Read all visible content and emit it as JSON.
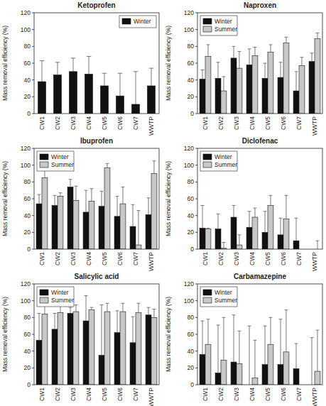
{
  "chart_data": [
    {
      "type": "bar",
      "title": "Ketoprofen",
      "y_label": "Mass removal efficiency (%)",
      "categories": [
        "CW1",
        "CW2",
        "CW3",
        "CW4",
        "CW5",
        "CW6",
        "CW7",
        "WWTP"
      ],
      "ylim": [
        0,
        120
      ],
      "yticks": [
        0,
        20,
        40,
        60,
        80,
        100,
        120
      ],
      "legend": "upper right",
      "series": [
        {
          "name": "Winter",
          "color": "#111111",
          "values": [
            38,
            46,
            50,
            47,
            33,
            21,
            11,
            33
          ],
          "errors": [
            25,
            15,
            16,
            21,
            15,
            27,
            39,
            21
          ]
        }
      ]
    },
    {
      "type": "bar",
      "title": "Naproxen",
      "y_label": "Mass removal efficiency (%)",
      "categories": [
        "CW1",
        "CW2",
        "CW3",
        "CW4",
        "CW5",
        "CW6",
        "CW7",
        "WWTP"
      ],
      "ylim": [
        0,
        120
      ],
      "yticks": [
        0,
        20,
        40,
        60,
        80,
        100,
        120
      ],
      "legend": "upper left",
      "series": [
        {
          "name": "Winter",
          "color": "#111111",
          "values": [
            41,
            42,
            66,
            58,
            42,
            43,
            27,
            62
          ],
          "errors": [
            11,
            19,
            14,
            19,
            18,
            18,
            23,
            10
          ]
        },
        {
          "name": "Summer",
          "color": "#c8c8c8",
          "values": [
            68,
            27,
            54,
            69,
            73,
            84,
            57,
            89
          ],
          "errors": [
            14,
            17,
            20,
            10,
            9,
            7,
            10,
            7
          ]
        }
      ]
    },
    {
      "type": "bar",
      "title": "Ibuprofen",
      "y_label": "Mass removal efficiency (%)",
      "categories": [
        "CW1",
        "CW2",
        "CW3",
        "CW4",
        "CW5",
        "CW6",
        "CW7",
        "WWTP"
      ],
      "ylim": [
        0,
        120
      ],
      "yticks": [
        0,
        20,
        40,
        60,
        80,
        100,
        120
      ],
      "legend": "upper left",
      "series": [
        {
          "name": "Winter",
          "color": "#111111",
          "values": [
            54,
            52,
            74,
            44,
            51,
            39,
            27,
            41
          ],
          "errors": [
            11,
            12,
            9,
            26,
            18,
            24,
            26,
            20
          ]
        },
        {
          "name": "Summer",
          "color": "#c8c8c8",
          "values": [
            85,
            63,
            58,
            57,
            97,
            54,
            5,
            90
          ],
          "errors": [
            10,
            4,
            17,
            15,
            5,
            20,
            41,
            15
          ]
        }
      ]
    },
    {
      "type": "bar",
      "title": "Diclofenac",
      "y_label": "Mass removal efficiency (%)",
      "categories": [
        "CW1",
        "CW2",
        "CW3",
        "CW4",
        "CW5",
        "CW6",
        "CW7",
        "WWTP"
      ],
      "ylim": [
        0,
        120
      ],
      "yticks": [
        0,
        20,
        40,
        60,
        80,
        100,
        120
      ],
      "legend": "upper left",
      "series": [
        {
          "name": "Winter",
          "color": "#111111",
          "values": [
            25,
            24,
            38,
            26,
            20,
            17,
            10,
            null
          ],
          "errors": [
            27,
            18,
            14,
            19,
            25,
            20,
            27,
            null
          ]
        },
        {
          "name": "Summer",
          "color": "#c8c8c8",
          "values": [
            24,
            1,
            5,
            38,
            52,
            36,
            null,
            0
          ],
          "errors": [
            1,
            7,
            12,
            11,
            12,
            28,
            null,
            10
          ]
        }
      ]
    },
    {
      "type": "bar",
      "title": "Salicylic acid",
      "y_label": "Mass removal efficiency (%)",
      "categories": [
        "CW1",
        "CW2",
        "CW3",
        "CW4",
        "CW5",
        "CW6",
        "CW7",
        "WWTP"
      ],
      "ylim": [
        0,
        120
      ],
      "yticks": [
        0,
        20,
        40,
        60,
        80,
        100,
        120
      ],
      "legend": "upper left",
      "series": [
        {
          "name": "Winter",
          "color": "#111111",
          "values": [
            53,
            66,
            85,
            76,
            35,
            62,
            50,
            83
          ],
          "errors": [
            32,
            19,
            7,
            30,
            60,
            26,
            31,
            9
          ]
        },
        {
          "name": "Summer",
          "color": "#c8c8c8",
          "values": [
            84,
            86,
            87,
            89,
            87,
            87,
            86,
            80
          ],
          "errors": [
            11,
            9,
            8,
            3,
            10,
            10,
            11,
            10
          ]
        }
      ]
    },
    {
      "type": "bar",
      "title": "Carbamazepine",
      "y_label": "Mass removal efficiency (%)",
      "categories": [
        "CW1",
        "CW2",
        "CW3",
        "CW4",
        "CW5",
        "CW6",
        "CW7",
        "WWTP"
      ],
      "ylim": [
        0,
        120
      ],
      "yticks": [
        0,
        20,
        40,
        60,
        80,
        100,
        120
      ],
      "legend": "upper left",
      "series": [
        {
          "name": "Winter",
          "color": "#111111",
          "values": [
            36,
            14,
            27,
            0,
            24,
            24,
            19,
            0
          ],
          "errors": [
            40,
            57,
            56,
            70,
            46,
            54,
            30,
            56
          ]
        },
        {
          "name": "Summer",
          "color": "#c8c8c8",
          "values": [
            48,
            29,
            25,
            8,
            48,
            39,
            null,
            16
          ],
          "errors": [
            30,
            51,
            39,
            45,
            32,
            50,
            null,
            49
          ]
        }
      ]
    }
  ]
}
